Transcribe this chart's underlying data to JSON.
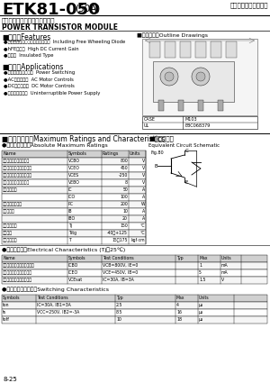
{
  "title_main": "ETK81-050",
  "title_sub": "(50A)",
  "title_right": "富士パワーモジュール",
  "subtitle1": "パワートランジスタモジュール",
  "subtitle2": "POWER TRANSISTOR MODULE",
  "outline_label": "■外形寸法：Outline Drawings",
  "features_header": "■特長：Features",
  "features": [
    "●フリーホイリングダイオード内蔵  Including Free Wheeling Diode",
    "●hFEが高い  High DC Current Gain",
    "●絶縁型  Insulated Type"
  ],
  "apps_header": "■用途：Applications",
  "apps": [
    "●大電力スイッチング  Power Switching",
    "●ACモータ制御  AC Motor Controls",
    "●DCモータ制御  DC Motor Controls",
    "●無停電電源装置  Uninterruptible Power Supply"
  ],
  "maxrating_header": "■定格と特性：Maximum Ratings and Characteristics",
  "abs_max_header": "●絶対最大定格：Absolute Maximum Ratings",
  "abs_max_cols": [
    "Name",
    "Symbols",
    "Ratings",
    "Units"
  ],
  "abs_max_rows": [
    [
      "コレクタ・ベース間電圧",
      "VCBO",
      "800",
      "V"
    ],
    [
      "コレクタ・エミッタ間電圧",
      "VCEO",
      "450",
      "V"
    ],
    [
      "コレクタ・エミッタ間電圧",
      "VCES",
      "-250",
      "V"
    ],
    [
      "エミッタ・ベース間電圧",
      "VEBO",
      "8",
      "V"
    ],
    [
      "コレクタ電流",
      "IC",
      "50",
      "A"
    ],
    [
      "",
      "ICO",
      "100",
      "A"
    ],
    [
      "コレクタ最大損失",
      "PC",
      "200",
      "W"
    ],
    [
      "ベース電流",
      "IB",
      "10",
      "A"
    ],
    [
      "",
      "IBO",
      "20",
      "A"
    ],
    [
      "コレクタ温度",
      "Tj",
      "150",
      "°C"
    ],
    [
      "保存温度",
      "Tstg",
      "-40～+125",
      "°C"
    ],
    [
      "締付けトルク",
      "T",
      "15～175",
      "kgf·cm"
    ]
  ],
  "elec_header": "●電気的特性：Electrical Characteristics (Tj：25℃)",
  "elec_cols": [
    "Name",
    "Symbols",
    "Test Conditions",
    "Typ",
    "Max",
    "Units"
  ],
  "elec_rows": [
    [
      "コレクタ・ベース間違漏電流",
      "ICBO",
      "VCB=800V, IE=0",
      "",
      "1",
      "mA"
    ],
    [
      "コレクタ・エミッタ間違漏",
      "ICEO",
      "VCE=450V, IB=0",
      "",
      "5",
      "mA"
    ],
    [
      "コレクタ・エミッタ間違漏",
      "VCEsat",
      "IC=30A, IB=3A",
      "",
      "1.5",
      "V"
    ]
  ],
  "sw_header": "●スイッチング特性：Switching Characteristics",
  "sw_cols": [
    "Symbols",
    "Test Conditions",
    "Typ",
    "Max",
    "Units"
  ],
  "sw_rows": [
    [
      "ton",
      "IC=30A, IB1=3A",
      "2.5",
      "4",
      "μs"
    ],
    [
      "ts",
      "VCC=250V, IB2=-3A",
      "8.5",
      "16",
      "μs"
    ],
    [
      "toff",
      "",
      "10",
      "18",
      "μs"
    ]
  ],
  "equiv_header": "■等価回路図",
  "equiv_sub": "Equivalent Circuit Schematic",
  "case_label": "CASE",
  "case_val": "UL",
  "m103_label": "M103",
  "ebc_label": "E8C068379",
  "fig_label": "Fig.80",
  "page_label": "8-25",
  "bg_color": "#ffffff",
  "text_color": "#000000"
}
